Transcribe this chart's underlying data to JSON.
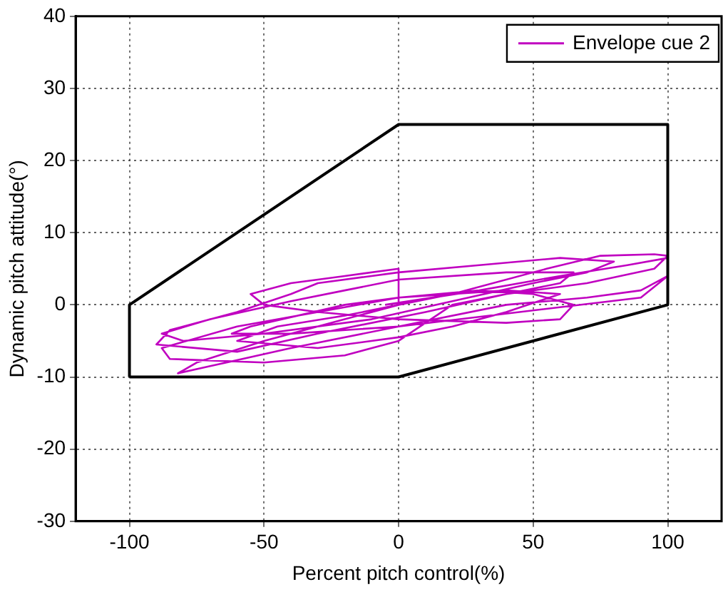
{
  "chart_data": {
    "type": "line",
    "xlabel": "Percent pitch control(%)",
    "ylabel": "Dynamic pitch attitude(°)",
    "xlim": [
      -120,
      120
    ],
    "xticks": [
      -100,
      -50,
      0,
      50,
      100
    ],
    "ylim": [
      -30,
      40
    ],
    "yticks": [
      -30,
      -20,
      -10,
      0,
      10,
      20,
      30,
      40
    ],
    "grid": true,
    "legend": "top right",
    "marker": "none",
    "line_style": "solid",
    "series": [
      {
        "color": "#000000",
        "x": [
          -100,
          -100,
          0,
          100,
          100
        ],
        "values": [
          -10,
          0,
          25,
          25,
          0
        ]
      },
      {
        "color": "#000000",
        "x": [
          -100,
          0,
          100
        ],
        "values": [
          -10,
          -10,
          0
        ]
      },
      {
        "name": "Envelope cue 2",
        "color": "#c000c0",
        "x": [
          -5,
          30,
          60,
          85,
          100,
          100,
          90,
          70,
          40,
          0,
          -40,
          -70,
          -82,
          -75,
          -50,
          -20,
          0,
          20,
          55,
          75,
          95,
          100,
          95,
          70,
          40,
          10,
          -30,
          -60,
          -90,
          -85,
          -60,
          -40,
          -30,
          0,
          30,
          60,
          80,
          70,
          50,
          20,
          -10,
          -50,
          -80,
          -88,
          -70,
          -40,
          -20,
          0,
          40,
          65,
          60,
          40,
          20,
          0,
          -20,
          -50,
          -85,
          -88,
          -60,
          -30,
          0,
          40,
          60,
          40,
          20,
          0,
          -30,
          -60,
          -45,
          -20,
          0,
          0,
          -20,
          -40,
          -55,
          -50,
          -30,
          0,
          40,
          60,
          65,
          50,
          30,
          0,
          -20,
          -55,
          -62,
          -40,
          0,
          90,
          100
        ],
        "values": [
          0,
          2,
          4,
          5.5,
          6.5,
          4,
          2,
          1,
          0,
          -3,
          -6,
          -8.5,
          -9.5,
          -8,
          -5,
          -2,
          0,
          1.5,
          5,
          6.8,
          7,
          6.8,
          5,
          3,
          1.5,
          -1,
          -4,
          -6.5,
          -5.5,
          -3.5,
          -1,
          1.5,
          3,
          4.5,
          5.5,
          6.5,
          6,
          4.5,
          3,
          0.5,
          -2,
          -4,
          -5,
          -4,
          -2,
          0.5,
          2,
          3.5,
          4.5,
          4.5,
          3,
          1.5,
          0,
          -5,
          -7,
          -8,
          -7.5,
          -6,
          -3,
          -1,
          1,
          2,
          1.5,
          -1,
          -3,
          -4.5,
          -6,
          -5,
          -3,
          -1.5,
          0,
          5,
          4,
          3,
          1.5,
          0,
          -1,
          -2,
          -2.5,
          -2,
          0,
          1.5,
          2,
          1,
          0,
          -3,
          -4,
          -4,
          -3,
          1,
          4
        ]
      }
    ]
  }
}
